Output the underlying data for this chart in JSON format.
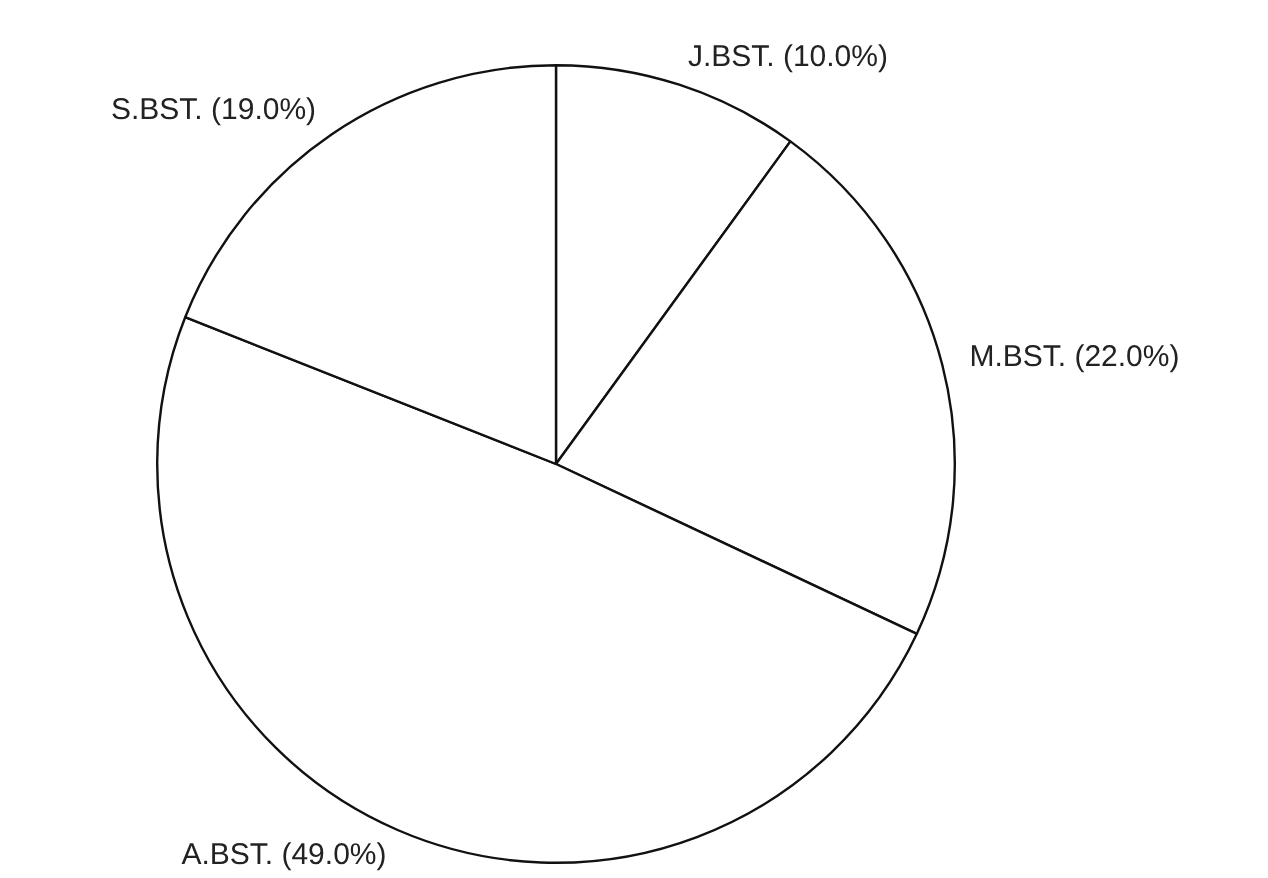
{
  "chart_data": {
    "type": "pie",
    "categories": [
      "J.BST.",
      "M.BST.",
      "A.BST.",
      "S.BST."
    ],
    "values": [
      10.0,
      22.0,
      49.0,
      19.0
    ],
    "value_labels": [
      "(10.0%)",
      "(22.0%)",
      "(49.0%)",
      "(19.0%)"
    ],
    "colors": [
      "#ffffff",
      "#ffffff",
      "#ffffff",
      "#ffffff"
    ],
    "legend": false
  }
}
